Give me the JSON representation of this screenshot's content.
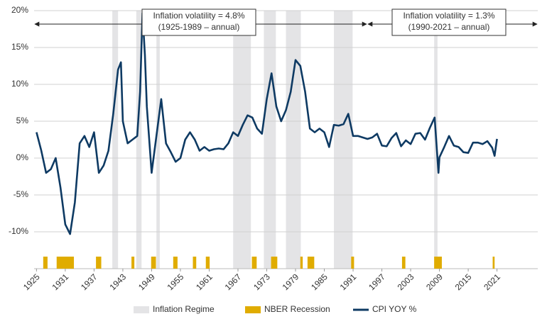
{
  "chart_data": {
    "type": "line",
    "xlim": [
      1924.5,
      2029.5
    ],
    "xticks": [
      1925,
      1931,
      1937,
      1943,
      1949,
      1955,
      1961,
      1967,
      1973,
      1979,
      1985,
      1991,
      1997,
      2003,
      2009,
      2015,
      2021
    ],
    "ylim": [
      -15,
      20
    ],
    "yticks": [
      {
        "value": -10,
        "label": "-10%"
      },
      {
        "value": -5,
        "label": "-5%"
      },
      {
        "value": 0,
        "label": "0%"
      },
      {
        "value": 5,
        "label": "5%"
      },
      {
        "value": 10,
        "label": "10%"
      },
      {
        "value": 15,
        "label": "15%"
      },
      {
        "value": 20,
        "label": "20%"
      }
    ],
    "grid": true,
    "series": [
      {
        "name": "CPI YOY %",
        "color": "#0e3a63",
        "x": [
          1925,
          1926,
          1927,
          1928,
          1929,
          1930,
          1931,
          1932,
          1933,
          1934,
          1935,
          1936,
          1937,
          1938,
          1939,
          1940,
          1941,
          1942,
          1942.6,
          1943,
          1944,
          1945,
          1946,
          1946.6,
          1947.1,
          1947.6,
          1948,
          1949,
          1950,
          1951,
          1952,
          1953,
          1954,
          1955,
          1956,
          1957,
          1958,
          1959,
          1960,
          1961,
          1962,
          1963,
          1964,
          1965,
          1966,
          1967,
          1968,
          1969,
          1970,
          1971,
          1972,
          1973,
          1974,
          1975,
          1976,
          1977,
          1978,
          1979,
          1980,
          1981,
          1982,
          1983,
          1984,
          1985,
          1986,
          1987,
          1988,
          1989,
          1990,
          1991,
          1992,
          1993,
          1994,
          1995,
          1996,
          1997,
          1998,
          1999,
          2000,
          2001,
          2002,
          2003,
          2004,
          2005,
          2006,
          2007,
          2008,
          2008.8,
          2009,
          2010,
          2011,
          2012,
          2013,
          2014,
          2015,
          2016,
          2017,
          2018,
          2019,
          2020,
          2020.5,
          2021
        ],
        "values": [
          3.5,
          1,
          -2,
          -1.5,
          0,
          -4,
          -9,
          -10.3,
          -6,
          2,
          3,
          1.5,
          3.5,
          -2,
          -1,
          1,
          6,
          12,
          13,
          5,
          2,
          2.5,
          3,
          9,
          19.7,
          14,
          7,
          -2,
          3,
          8,
          2,
          0.8,
          -0.5,
          0,
          2.5,
          3.5,
          2.5,
          1,
          1.5,
          1,
          1.2,
          1.3,
          1.2,
          2,
          3.5,
          3,
          4.5,
          5.8,
          5.5,
          4,
          3.3,
          8,
          11.5,
          7,
          5,
          6.5,
          9,
          13.3,
          12.5,
          9,
          4,
          3.5,
          4,
          3.5,
          1.5,
          4.5,
          4.4,
          4.6,
          6,
          3,
          3,
          2.8,
          2.6,
          2.8,
          3.3,
          1.7,
          1.6,
          2.7,
          3.4,
          1.6,
          2.4,
          1.9,
          3.3,
          3.4,
          2.5,
          4.1,
          5.5,
          -2,
          0.1,
          1.5,
          3,
          1.7,
          1.5,
          0.8,
          0.7,
          2.1,
          2.1,
          1.9,
          2.3,
          1.4,
          0.3,
          2.6
        ]
      }
    ],
    "regimes": {
      "name": "Inflation Regime",
      "color": "#e4e4e6",
      "spans": [
        [
          1940.8,
          1942
        ],
        [
          1945.8,
          1946.9
        ],
        [
          1950,
          1950.7
        ],
        [
          1966,
          1969.7
        ],
        [
          1972.4,
          1974.9
        ],
        [
          1977,
          1980.1
        ],
        [
          1987,
          1990.9
        ],
        [
          2007.9,
          2008.6
        ]
      ]
    },
    "recessions": {
      "name": "NBER Recession",
      "color": "#e0ac00",
      "spans": [
        [
          1926.4,
          1927.3
        ],
        [
          1929.2,
          1932.8
        ],
        [
          1937.4,
          1938.5
        ],
        [
          1944.8,
          1945.4
        ],
        [
          1948.9,
          1949.9
        ],
        [
          1953.5,
          1954.4
        ],
        [
          1957.6,
          1958.3
        ],
        [
          1960.3,
          1961.1
        ],
        [
          1969.9,
          1970.9
        ],
        [
          1973.9,
          1975.2
        ],
        [
          1980,
          1980.5
        ],
        [
          1981.5,
          1982.9
        ],
        [
          1990.6,
          1991.2
        ],
        [
          2001.2,
          2001.9
        ],
        [
          2007.9,
          2009.5
        ],
        [
          2020.1,
          2020.5
        ]
      ]
    },
    "annotations": [
      {
        "lines": [
          "Inflation volatility = 4.8%",
          "(1925-1989 – annual)"
        ]
      },
      {
        "lines": [
          "Inflation volatility = 1.3%",
          "(1990-2021 – annual)"
        ]
      }
    ]
  }
}
